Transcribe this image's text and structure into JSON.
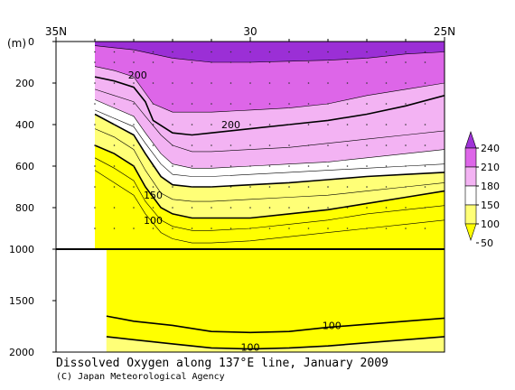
{
  "chart_data": {
    "type": "heatmap",
    "title": "Dissolved Oxygen along 137°E line, January 2009",
    "credit": "(C) Japan Meteorological Agency",
    "depth_unit_label": "(m)",
    "x_axis": {
      "quantity": "latitude",
      "range": [
        35,
        25
      ],
      "ticks": [
        {
          "value": 35,
          "label": "35N"
        },
        {
          "value": 30,
          "label": "30"
        },
        {
          "value": 25,
          "label": "25N"
        }
      ]
    },
    "y_upper": {
      "range": [
        0,
        1000
      ],
      "ticks": [
        {
          "value": 0,
          "label": "0"
        },
        {
          "value": 200,
          "label": "200"
        },
        {
          "value": 400,
          "label": "400"
        },
        {
          "value": 600,
          "label": "600"
        },
        {
          "value": 800,
          "label": "800"
        }
      ]
    },
    "y_lower": {
      "range": [
        1000,
        2000
      ],
      "ticks": [
        {
          "value": 1000,
          "label": "1000"
        },
        {
          "value": 1500,
          "label": "1500"
        },
        {
          "value": 2000,
          "label": "2000"
        }
      ]
    },
    "colorbar": {
      "levels": [
        50,
        100,
        150,
        180,
        210,
        240
      ],
      "labels": [
        "240",
        "210",
        "180",
        "150",
        "100",
        "50"
      ],
      "colors": [
        "#ffff00",
        "#ffff77",
        "#ffffff",
        "#f3b3f3",
        "#dd66e8",
        "#a033d8"
      ]
    },
    "contour_labels": [
      {
        "text": "200",
        "lat": 32.9,
        "depth": 160
      },
      {
        "text": "200",
        "lat": 30.5,
        "depth": 400
      },
      {
        "text": "150",
        "lat": 32.5,
        "depth": 740
      },
      {
        "text": "100",
        "lat": 32.5,
        "depth": 860
      },
      {
        "text": "100",
        "lat": 27.9,
        "depth": 1740
      },
      {
        "text": "100",
        "lat": 30.0,
        "depth": 1950
      }
    ],
    "stations_lat": [
      34.0,
      33.5,
      33.0,
      32.5,
      32.0,
      31.5,
      31.0,
      30.5,
      30.0,
      29.5,
      29.0,
      28.5,
      28.0,
      27.5,
      27.0,
      26.5,
      26.0,
      25.5
    ],
    "data_start_lat": 34.0,
    "deep_data_start_lat": 33.7,
    "contours_upper": [
      {
        "level": 220,
        "lat": [
          34.0,
          33.5,
          33.0,
          32.0,
          31.0,
          30.0,
          29.0,
          28.0,
          27.0,
          26.0,
          25.0
        ],
        "depth": [
          20,
          30,
          40,
          80,
          100,
          100,
          95,
          90,
          80,
          60,
          50
        ]
      },
      {
        "level": 210,
        "lat": [
          34.0,
          33.5,
          33.0,
          32.5,
          32.0,
          31.0,
          30.0,
          29.0,
          28.0,
          27.0,
          26.0,
          25.0
        ],
        "depth": [
          120,
          140,
          170,
          300,
          340,
          340,
          330,
          320,
          300,
          260,
          230,
          200
        ]
      },
      {
        "level": 200,
        "lat": [
          34.0,
          33.5,
          33.0,
          32.7,
          32.5,
          32.0,
          31.5,
          31.0,
          30.0,
          29.0,
          28.0,
          27.0,
          26.0,
          25.0
        ],
        "depth": [
          170,
          190,
          220,
          290,
          380,
          440,
          450,
          440,
          420,
          400,
          380,
          350,
          310,
          260
        ]
      },
      {
        "level": 190,
        "lat": [
          34.0,
          33.5,
          33.0,
          32.7,
          32.3,
          32.0,
          31.5,
          31.0,
          30.0,
          29.0,
          28.0,
          27.0,
          26.0,
          25.0
        ],
        "depth": [
          230,
          260,
          290,
          360,
          450,
          500,
          530,
          530,
          520,
          510,
          490,
          470,
          450,
          430
        ]
      },
      {
        "level": 180,
        "lat": [
          34.0,
          33.5,
          33.0,
          32.7,
          32.3,
          32.0,
          31.5,
          31.0,
          30.0,
          29.0,
          28.0,
          27.0,
          26.0,
          25.0
        ],
        "depth": [
          280,
          320,
          360,
          440,
          540,
          590,
          610,
          610,
          600,
          590,
          580,
          560,
          540,
          520
        ]
      },
      {
        "level": 165,
        "lat": [
          34.0,
          33.5,
          33.0,
          32.7,
          32.3,
          32.0,
          31.5,
          31.0,
          30.0,
          29.0,
          28.0,
          27.0,
          26.0,
          25.0
        ],
        "depth": [
          330,
          370,
          410,
          490,
          590,
          640,
          650,
          650,
          640,
          630,
          620,
          610,
          600,
          590
        ]
      },
      {
        "level": 150,
        "lat": [
          34.0,
          33.5,
          33.0,
          32.7,
          32.3,
          32.0,
          31.5,
          31.0,
          30.0,
          29.0,
          28.0,
          27.0,
          26.0,
          25.0
        ],
        "depth": [
          350,
          400,
          450,
          540,
          650,
          690,
          700,
          700,
          690,
          680,
          665,
          650,
          640,
          630
        ]
      },
      {
        "level": 130,
        "lat": [
          34.0,
          33.5,
          33.0,
          32.7,
          32.3,
          32.0,
          31.5,
          31.0,
          30.0,
          29.0,
          28.0,
          27.0,
          26.0,
          25.0
        ],
        "depth": [
          420,
          460,
          520,
          620,
          730,
          760,
          770,
          770,
          760,
          750,
          740,
          720,
          700,
          680
        ]
      },
      {
        "level": 100,
        "lat": [
          34.0,
          33.5,
          33.0,
          32.7,
          32.3,
          32.0,
          31.5,
          31.0,
          30.0,
          29.0,
          28.0,
          27.0,
          26.0,
          25.0
        ],
        "depth": [
          500,
          540,
          600,
          700,
          800,
          830,
          850,
          850,
          850,
          830,
          810,
          780,
          750,
          720
        ]
      },
      {
        "level": 80,
        "lat": [
          34.0,
          33.5,
          33.0,
          32.7,
          32.3,
          32.0,
          31.5,
          31.0,
          30.0,
          29.0,
          28.0,
          27.0,
          26.0,
          25.0
        ],
        "depth": [
          560,
          610,
          670,
          770,
          860,
          890,
          910,
          910,
          900,
          880,
          860,
          830,
          810,
          790
        ]
      },
      {
        "level": 70,
        "lat": [
          34.0,
          33.5,
          33.0,
          32.7,
          32.3,
          32.0,
          31.5,
          31.0,
          30.0,
          29.0,
          28.0,
          27.0,
          26.0,
          25.0
        ],
        "depth": [
          620,
          680,
          740,
          830,
          920,
          950,
          970,
          970,
          960,
          940,
          920,
          900,
          880,
          860
        ]
      }
    ],
    "contours_lower": [
      {
        "level": 100,
        "lat": [
          33.7,
          33.0,
          32.0,
          31.0,
          30.0,
          29.0,
          28.0,
          27.0,
          26.0,
          25.0
        ],
        "depth": [
          1650,
          1700,
          1740,
          1800,
          1810,
          1800,
          1760,
          1730,
          1700,
          1670
        ]
      },
      {
        "level": 100,
        "lat": [
          33.7,
          33.0,
          32.0,
          31.0,
          30.0,
          29.0,
          28.0,
          27.0,
          26.0,
          25.0
        ],
        "depth": [
          1850,
          1880,
          1920,
          1960,
          1970,
          1960,
          1940,
          1910,
          1880,
          1850
        ]
      }
    ]
  }
}
